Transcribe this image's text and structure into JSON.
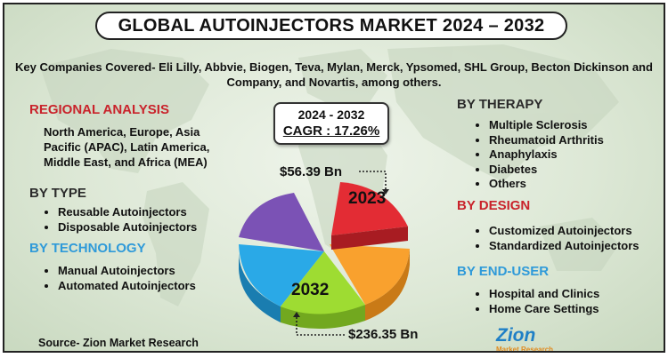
{
  "title": "GLOBAL AUTOINJECTORS MARKET 2024 – 2032",
  "intro_text": "Key Companies Covered- Eli Lilly, Abbvie, Biogen, Teva, Mylan, Merck, Ypsomed, SHL Group, Becton Dickinson and Company, and Novartis, among others.",
  "regional": {
    "heading": "REGIONAL ANALYSIS",
    "text": "North America, Europe, Asia Pacific (APAC), Latin America, Middle East, and Africa (MEA)"
  },
  "by_type": {
    "heading": "BY TYPE",
    "items": [
      "Reusable Autoinjectors",
      "Disposable Autoinjectors"
    ]
  },
  "by_technology": {
    "heading": "BY TECHNOLOGY",
    "items": [
      "Manual Autoinjectors",
      "Automated Autoinjectors"
    ]
  },
  "by_therapy": {
    "heading": "BY THERAPY",
    "items": [
      "Multiple Sclerosis",
      "Rheumatoid Arthritis",
      "Anaphylaxis",
      "Diabetes",
      "Others"
    ]
  },
  "by_design": {
    "heading": "BY DESIGN",
    "items": [
      "Customized Autoinjectors",
      "Standardized Autoinjectors"
    ]
  },
  "by_end_user": {
    "heading": "BY END-USER",
    "items": [
      "Hospital and Clinics",
      "Home Care Settings"
    ]
  },
  "cagr": {
    "years": "2024 - 2032",
    "value": "CAGR : 17.26%"
  },
  "pie": {
    "value_2023": "$56.39 Bn",
    "label_2023": "2023",
    "value_2032": "$236.35 Bn",
    "label_2032": "2032",
    "colors": [
      "#e32c34",
      "#f9a12e",
      "#9edc32",
      "#2aa9e7",
      "#7b52b5"
    ]
  },
  "source": "Source- Zion Market Research",
  "logo": {
    "name": "Zion",
    "sub": "Market Research"
  }
}
